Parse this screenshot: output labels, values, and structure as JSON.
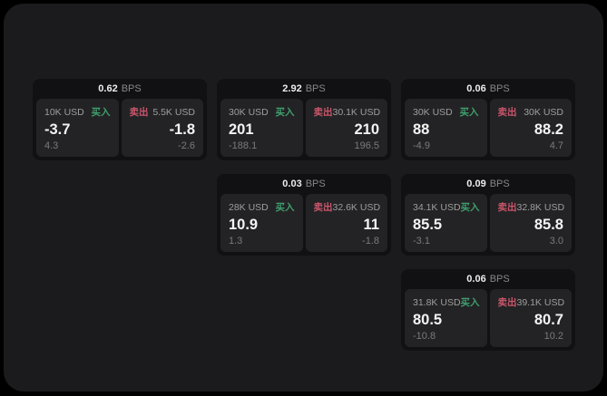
{
  "colors": {
    "page_bg": "#000000",
    "window_bg": "#1b1b1d",
    "card_bg": "#111113",
    "panel_bg": "#232325",
    "buy_green": "#3f9f6e",
    "sell_red": "#c9566b",
    "value_white": "#f4f4f4",
    "label_gray": "#9e9e9e",
    "delta_gray": "#7a7a7a"
  },
  "cards": [
    {
      "bps": "0.62",
      "unit": "BPS",
      "buy": {
        "amount": "10K USD",
        "side": "买入",
        "price": "-3.7",
        "delta": "4.3"
      },
      "sell": {
        "side": "卖出",
        "amount": "5.5K USD",
        "price": "-1.8",
        "delta": "-2.6"
      }
    },
    {
      "bps": "2.92",
      "unit": "BPS",
      "buy": {
        "amount": "30K USD",
        "side": "买入",
        "price": "201",
        "delta": "-188.1"
      },
      "sell": {
        "side": "卖出",
        "amount": "30.1K USD",
        "price": "210",
        "delta": "196.5"
      }
    },
    {
      "bps": "0.06",
      "unit": "BPS",
      "buy": {
        "amount": "30K USD",
        "side": "买入",
        "price": "88",
        "delta": "-4.9"
      },
      "sell": {
        "side": "卖出",
        "amount": "30K USD",
        "price": "88.2",
        "delta": "4.7"
      }
    },
    {
      "bps": "0.03",
      "unit": "BPS",
      "buy": {
        "amount": "28K USD",
        "side": "买入",
        "price": "10.9",
        "delta": "1.3"
      },
      "sell": {
        "side": "卖出",
        "amount": "32.6K USD",
        "price": "11",
        "delta": "-1.8"
      }
    },
    {
      "bps": "0.09",
      "unit": "BPS",
      "buy": {
        "amount": "34.1K USD",
        "side": "买入",
        "price": "85.5",
        "delta": "-3.1"
      },
      "sell": {
        "side": "卖出",
        "amount": "32.8K USD",
        "price": "85.8",
        "delta": "3.0"
      }
    },
    {
      "bps": "0.06",
      "unit": "BPS",
      "buy": {
        "amount": "31.8K USD",
        "side": "买入",
        "price": "80.5",
        "delta": "-10.8"
      },
      "sell": {
        "side": "卖出",
        "amount": "39.1K USD",
        "price": "80.7",
        "delta": "10.2"
      }
    }
  ]
}
